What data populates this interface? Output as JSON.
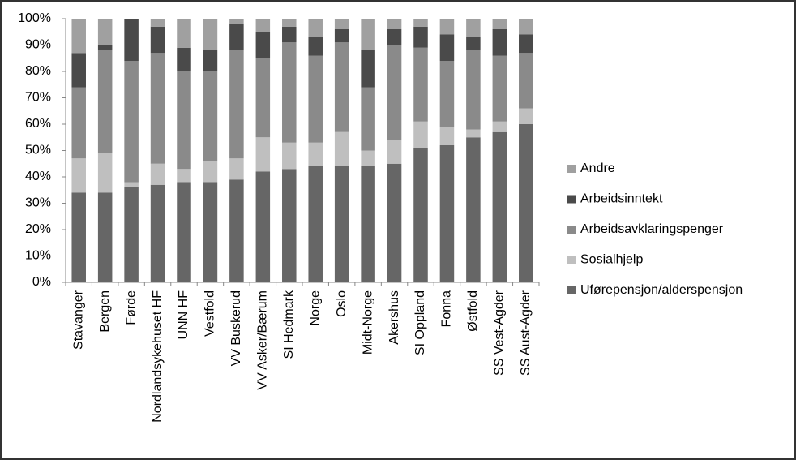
{
  "chart_data": {
    "type": "stacked_bar_100",
    "categories": [
      "Stavanger",
      "Bergen",
      "Førde",
      "Nordlandsykehuset HF",
      "UNN HF",
      "Vestfold",
      "VV Buskerud",
      "VV Asker/Bærum",
      "SI Hedmark",
      "Norge",
      "Oslo",
      "Midt-Norge",
      "Akershus",
      "SI Oppland",
      "Fonna",
      "Østfold",
      "SS Vest-Agder",
      "SS Aust-Agder"
    ],
    "series": [
      {
        "name": "Uførepensjon/alderspensjon",
        "color": "#666666",
        "values": [
          34,
          34,
          36,
          37,
          38,
          38,
          39,
          42,
          43,
          44,
          44,
          44,
          45,
          51,
          52,
          55,
          57,
          60
        ]
      },
      {
        "name": "Sosialhjelp",
        "color": "#bfbfbf",
        "values": [
          13,
          15,
          2,
          8,
          5,
          8,
          8,
          13,
          10,
          9,
          13,
          6,
          9,
          10,
          7,
          3,
          4,
          6
        ]
      },
      {
        "name": "Arbeidsavklaringspenger",
        "color": "#8a8a8a",
        "values": [
          27,
          39,
          46,
          42,
          37,
          34,
          41,
          30,
          38,
          33,
          34,
          24,
          36,
          28,
          25,
          30,
          25,
          21
        ]
      },
      {
        "name": "Arbeidsinntekt",
        "color": "#4a4a4a",
        "values": [
          13,
          2,
          16,
          10,
          9,
          8,
          10,
          10,
          6,
          7,
          5,
          14,
          6,
          8,
          10,
          5,
          10,
          7
        ]
      },
      {
        "name": "Andre",
        "color": "#a0a0a0",
        "values": [
          13,
          10,
          0,
          3,
          11,
          12,
          2,
          5,
          3,
          7,
          4,
          12,
          4,
          3,
          6,
          7,
          4,
          6
        ]
      }
    ],
    "ylim": [
      0,
      100
    ],
    "yticks": [
      {
        "value": 0,
        "label": "0%"
      },
      {
        "value": 10,
        "label": "10%"
      },
      {
        "value": 20,
        "label": "20%"
      },
      {
        "value": 30,
        "label": "30%"
      },
      {
        "value": 40,
        "label": "40%"
      },
      {
        "value": 50,
        "label": "50%"
      },
      {
        "value": 60,
        "label": "60%"
      },
      {
        "value": 70,
        "label": "70%"
      },
      {
        "value": 80,
        "label": "80%"
      },
      {
        "value": 90,
        "label": "90%"
      },
      {
        "value": 100,
        "label": "100%"
      }
    ],
    "legend": "right"
  }
}
